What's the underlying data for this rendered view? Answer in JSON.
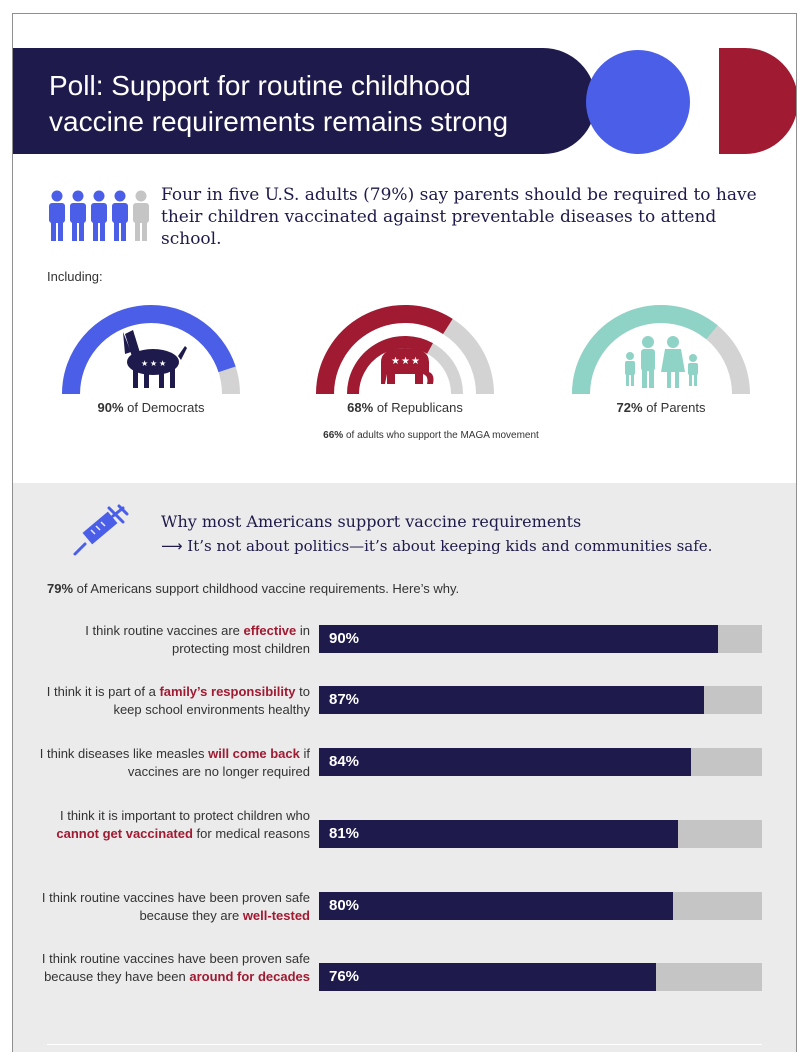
{
  "title": "Poll: Support for routine childhood vaccine requirements remains strong",
  "intro": "Four in five U.S. adults (79%) say parents should be required to have their children vaccinated against preventable diseases to attend school.",
  "including_label": "Including:",
  "gauges": [
    {
      "value": 90,
      "bold": "90%",
      "label": " of Democrats",
      "color": "#4b5ee8",
      "icon": "donkey-icon"
    },
    {
      "value": 68,
      "bold": "68%",
      "label": " of Republicans",
      "color": "#a01a32",
      "icon": "elephant-icon",
      "note_bold": "66%",
      "note": " of adults who support the MAGA movement"
    },
    {
      "value": 72,
      "bold": "72%",
      "label": " of Parents",
      "color": "#8fd3c7",
      "icon": "family-icon"
    }
  ],
  "why_title": "Why most Americans support vaccine requirements",
  "why_sub": "It’s not about politics—it’s about keeping kids and communities safe.",
  "intro2_bold": "79%",
  "intro2": " of Americans support childhood vaccine requirements. Here’s why.",
  "colors": {
    "navy": "#1e1a4b",
    "blue": "#4b5ee8",
    "red": "#a01a32",
    "teal": "#8fd3c7",
    "grey": "#c5c5c5"
  },
  "chart_data": {
    "type": "bar",
    "orientation": "horizontal",
    "xlim": [
      0,
      100
    ],
    "categories": [
      "I think routine vaccines are effective in protecting most children",
      "I think it is part of a family’s responsibility to keep school environments healthy",
      "I think diseases like measles will come back if vaccines are no longer required",
      "I think it is important to protect children who cannot get vaccinated for medical reasons",
      "I think routine vaccines have been proven safe because they are well-tested",
      "I think routine vaccines have been proven safe because they have been around for decades"
    ],
    "values": [
      90,
      87,
      84,
      81,
      80,
      76
    ],
    "value_labels": [
      "90%",
      "87%",
      "84%",
      "81%",
      "80%",
      "76%"
    ],
    "label_parts": [
      [
        {
          "t": "I think routine vaccines are "
        },
        {
          "t": "effective",
          "h": true
        },
        {
          "t": " in protecting most children"
        }
      ],
      [
        {
          "t": "I think it is part of a "
        },
        {
          "t": "family’s responsibility",
          "h": true
        },
        {
          "t": " to keep school environments healthy"
        }
      ],
      [
        {
          "t": "I think diseases like measles "
        },
        {
          "t": "will come back",
          "h": true
        },
        {
          "t": " if vaccines are no longer required"
        }
      ],
      [
        {
          "t": "I think it is important to protect children who "
        },
        {
          "t": "cannot get vaccinated",
          "h": true
        },
        {
          "t": " for medical reasons"
        }
      ],
      [
        {
          "t": "I think routine vaccines have been proven safe because they are "
        },
        {
          "t": "well-tested",
          "h": true
        }
      ],
      [
        {
          "t": "I think routine vaccines have been proven safe because they have been "
        },
        {
          "t": "around for decades",
          "h": true
        }
      ]
    ]
  }
}
